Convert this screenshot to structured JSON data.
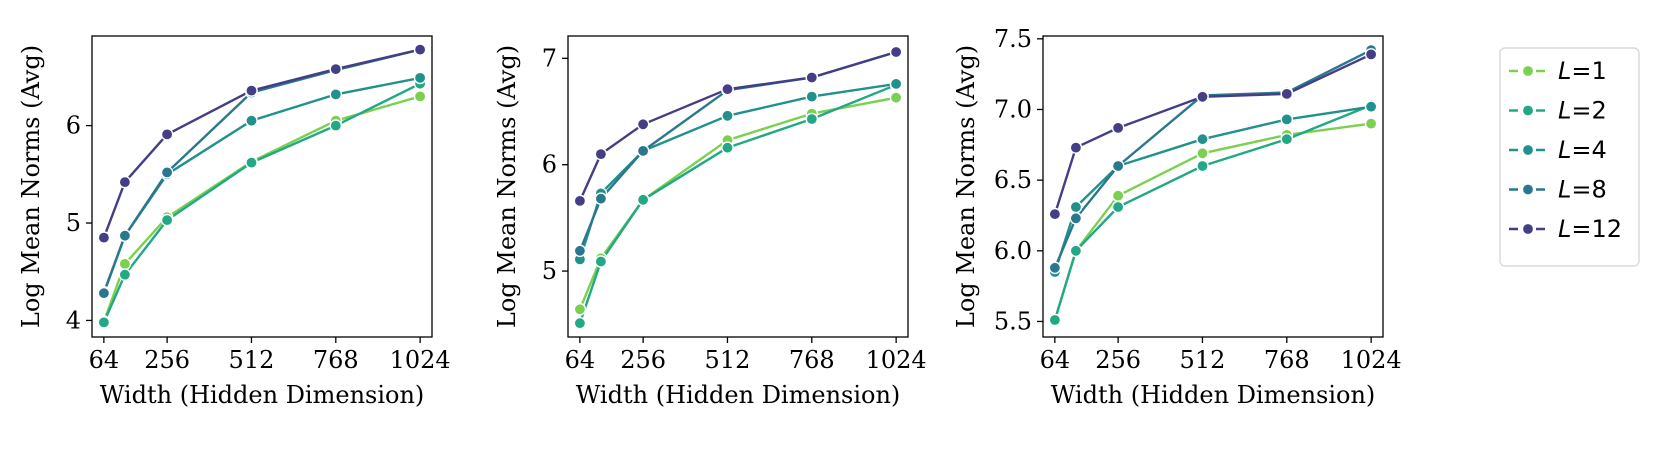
{
  "figure": {
    "legend": {
      "placement": "right",
      "title": "",
      "entries": [
        {
          "prefix": "L",
          "suffix": "=1"
        },
        {
          "prefix": "L",
          "suffix": "=2"
        },
        {
          "prefix": "L",
          "suffix": "=4"
        },
        {
          "prefix": "L",
          "suffix": "=8"
        },
        {
          "prefix": "L",
          "suffix": "=12"
        }
      ]
    },
    "series_colors": {
      "L=1": "#7ad151",
      "L=2": "#22a884",
      "L=4": "#21918c",
      "L=8": "#2a788e",
      "L=12": "#433e85"
    }
  },
  "chart_data": [
    {
      "type": "line",
      "title": "",
      "xlabel": "Width (Hidden Dimension)",
      "ylabel": "Log Mean Norms (Avg)",
      "x": [
        64,
        128,
        256,
        512,
        768,
        1024
      ],
      "xticks": [
        64,
        256,
        512,
        768,
        1024
      ],
      "xlim": [
        28,
        1060
      ],
      "yticks": [
        4,
        5,
        6
      ],
      "ylim": [
        3.83,
        6.92
      ],
      "grid": false,
      "series": [
        {
          "name": "L=1",
          "values": [
            3.99,
            4.58,
            5.06,
            5.63,
            6.05,
            6.3
          ]
        },
        {
          "name": "L=2",
          "values": [
            3.98,
            4.47,
            5.03,
            5.62,
            6.0,
            6.43
          ]
        },
        {
          "name": "L=4",
          "values": [
            4.29,
            4.87,
            5.5,
            6.05,
            6.32,
            6.49
          ]
        },
        {
          "name": "L=8",
          "values": [
            4.28,
            4.87,
            5.52,
            6.34,
            6.57,
            6.78
          ]
        },
        {
          "name": "L=12",
          "values": [
            4.85,
            5.42,
            5.91,
            6.36,
            6.58,
            6.78
          ]
        }
      ]
    },
    {
      "type": "line",
      "title": "",
      "xlabel": "Width (Hidden Dimension)",
      "ylabel": "Log Mean Norms (Avg)",
      "x": [
        64,
        128,
        256,
        512,
        768,
        1024
      ],
      "xticks": [
        64,
        256,
        512,
        768,
        1024
      ],
      "xlim": [
        28,
        1060
      ],
      "yticks": [
        5,
        6,
        7
      ],
      "ylim": [
        4.38,
        7.21
      ],
      "grid": false,
      "series": [
        {
          "name": "L=1",
          "values": [
            4.64,
            5.12,
            5.67,
            6.23,
            6.48,
            6.63
          ]
        },
        {
          "name": "L=2",
          "values": [
            4.51,
            5.09,
            5.67,
            6.16,
            6.43,
            6.75
          ]
        },
        {
          "name": "L=4",
          "values": [
            5.11,
            5.73,
            6.13,
            6.46,
            6.64,
            6.76
          ]
        },
        {
          "name": "L=8",
          "values": [
            5.19,
            5.68,
            6.13,
            6.7,
            6.82,
            7.06
          ]
        },
        {
          "name": "L=12",
          "values": [
            5.66,
            6.1,
            6.38,
            6.71,
            6.82,
            7.06
          ]
        }
      ]
    },
    {
      "type": "line",
      "title": "",
      "xlabel": "Width (Hidden Dimension)",
      "ylabel": "Log Mean Norms (Avg)",
      "x": [
        64,
        128,
        256,
        512,
        768,
        1024
      ],
      "xticks": [
        64,
        256,
        512,
        768,
        1024
      ],
      "xlim": [
        28,
        1060
      ],
      "yticks": [
        5.5,
        6.0,
        6.5,
        7.0,
        7.5
      ],
      "yticklabels": [
        "5.5",
        "6.0",
        "6.5",
        "7.0",
        "7.5"
      ],
      "ylim": [
        5.39,
        7.52
      ],
      "grid": false,
      "series": [
        {
          "name": "L=1",
          "values": [
            5.51,
            6.0,
            6.39,
            6.69,
            6.82,
            6.9
          ]
        },
        {
          "name": "L=2",
          "values": [
            5.51,
            6.0,
            6.31,
            6.6,
            6.79,
            7.03
          ]
        },
        {
          "name": "L=4",
          "values": [
            5.85,
            6.31,
            6.6,
            6.79,
            6.93,
            7.02
          ]
        },
        {
          "name": "L=8",
          "values": [
            5.88,
            6.23,
            6.6,
            7.1,
            7.12,
            7.42
          ]
        },
        {
          "name": "L=12",
          "values": [
            6.26,
            6.73,
            6.87,
            7.09,
            7.11,
            7.39
          ]
        }
      ]
    }
  ]
}
